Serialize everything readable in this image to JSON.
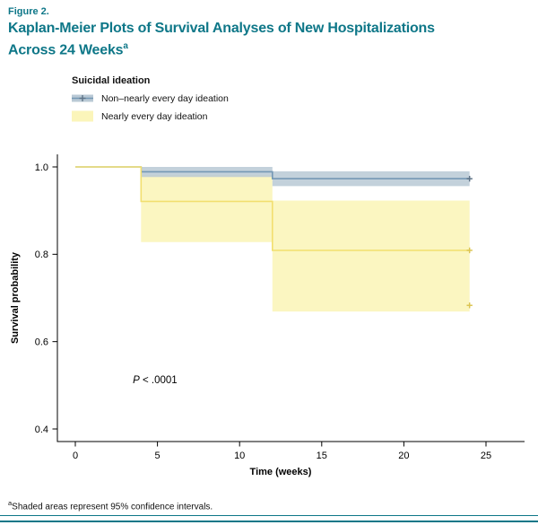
{
  "colors": {
    "accent_teal": "#0e7788"
  },
  "figure": {
    "label": "Figure 2.",
    "title_line1": "Kaplan-Meier Plots of Survival Analyses of New Hospitalizations",
    "title_line2": "Across 24 Weeks",
    "title_superscript": "a",
    "footnote_marker": "a",
    "footnote_text": "Shaded areas represent 95% confidence intervals."
  },
  "legend": {
    "title": "Suicidal ideation",
    "items": [
      {
        "label": "Non–nearly every day ideation"
      },
      {
        "label": "Nearly every day ideation"
      }
    ]
  },
  "chart_data": {
    "type": "line",
    "subtype": "kaplan-meier-step-with-ci-bands",
    "title": "Kaplan-Meier Plots of Survival Analyses of New Hospitalizations Across 24 Weeks",
    "xlabel": "Time (weeks)",
    "ylabel": "Survival probability",
    "xlim": [
      0,
      25
    ],
    "ylim": [
      0.4,
      1.0
    ],
    "xticks": [
      0,
      5,
      10,
      15,
      20,
      25
    ],
    "yticks": [
      0.4,
      0.6,
      0.8,
      1.0
    ],
    "grid": false,
    "legend_position": "top-left-above-plot",
    "annotation": {
      "italic": "P",
      "rest": " < .0001",
      "x": 3.5,
      "y": 0.505
    },
    "series": [
      {
        "name": "Non–nearly every day ideation",
        "line_color": "#7498b4",
        "band_color": "#b9c9d5",
        "band_opacity": 0.85,
        "censor_color": "#5f7488",
        "steps": [
          [
            0,
            1.0
          ],
          [
            4,
            1.0
          ],
          [
            4,
            0.989
          ],
          [
            12,
            0.989
          ],
          [
            12,
            0.973
          ],
          [
            24,
            0.973
          ]
        ],
        "band_upper": [
          [
            4,
            1.0
          ],
          [
            12,
            1.0
          ],
          [
            12,
            0.99
          ],
          [
            24,
            0.99
          ]
        ],
        "band_lower": [
          [
            4,
            0.977
          ],
          [
            12,
            0.977
          ],
          [
            12,
            0.956
          ],
          [
            24,
            0.956
          ]
        ],
        "censor_marks": [
          [
            24,
            0.973
          ]
        ]
      },
      {
        "name": "Nearly every day ideation",
        "line_color": "#f2df6f",
        "band_color": "#fbf5ba",
        "band_opacity": 0.9,
        "censor_color": "#dcc553",
        "steps": [
          [
            0,
            1.0
          ],
          [
            4,
            1.0
          ],
          [
            4,
            0.921
          ],
          [
            12,
            0.921
          ],
          [
            12,
            0.809
          ],
          [
            24,
            0.809
          ]
        ],
        "band_upper": [
          [
            4,
            0.982
          ],
          [
            12,
            0.982
          ],
          [
            12,
            0.923
          ],
          [
            24,
            0.923
          ]
        ],
        "band_lower": [
          [
            4,
            0.828
          ],
          [
            12,
            0.828
          ],
          [
            12,
            0.669
          ],
          [
            24,
            0.669
          ]
        ],
        "censor_marks": [
          [
            24,
            0.809
          ],
          [
            24,
            0.683
          ]
        ]
      }
    ]
  }
}
